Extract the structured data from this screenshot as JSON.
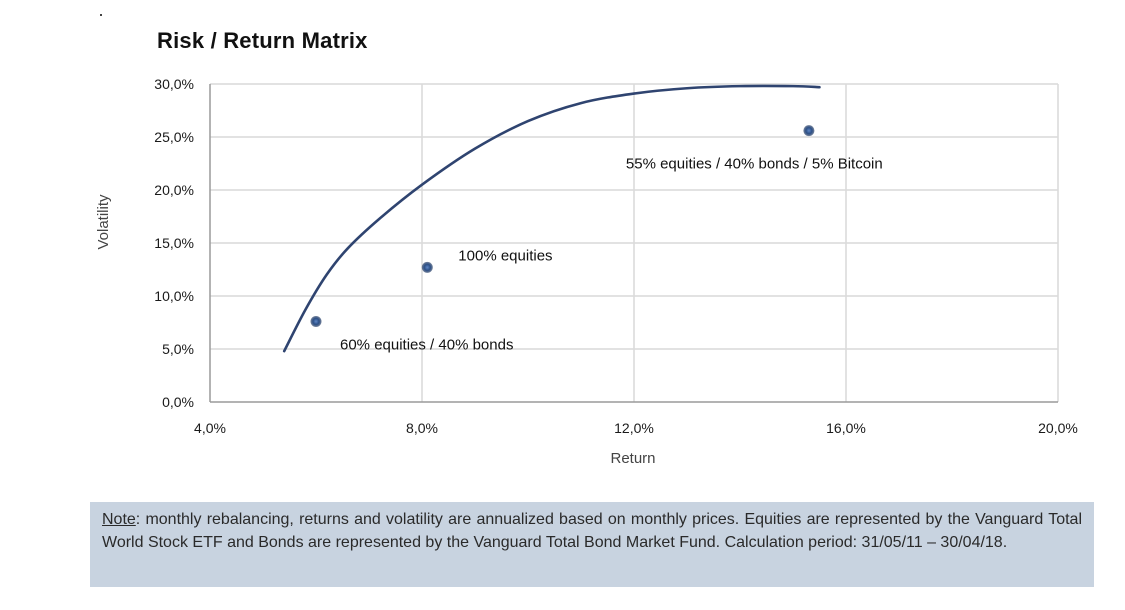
{
  "title": "Risk / Return Matrix",
  "chart_data": {
    "type": "scatter",
    "title": "Risk / Return Matrix",
    "xlabel": "Return",
    "ylabel": "Volatility",
    "xlim": [
      4.0,
      20.0
    ],
    "ylim": [
      0.0,
      30.0
    ],
    "x_ticks": [
      "4,0%",
      "8,0%",
      "12,0%",
      "16,0%",
      "20,0%"
    ],
    "y_ticks": [
      "0,0%",
      "5,0%",
      "10,0%",
      "15,0%",
      "20,0%",
      "25,0%",
      "30,0%"
    ],
    "grid": true,
    "points": [
      {
        "label": "60% equities / 40% bonds",
        "x": 6.0,
        "y": 7.6
      },
      {
        "label": "100% equities",
        "x": 8.1,
        "y": 12.7
      },
      {
        "label": "55% equities / 40% bonds / 5% Bitcoin",
        "x": 15.3,
        "y": 25.6
      }
    ],
    "frontier": {
      "x": [
        5.4,
        5.8,
        6.2,
        6.6,
        7.2,
        8.0,
        9.0,
        10.0,
        11.0,
        12.0,
        13.0,
        14.0,
        15.0,
        15.5
      ],
      "y": [
        4.8,
        8.7,
        12.0,
        14.5,
        17.3,
        20.5,
        23.9,
        26.5,
        28.2,
        29.1,
        29.6,
        29.8,
        29.8,
        29.7
      ]
    },
    "colors": {
      "curve": "#2f4470",
      "point": "#2c4f86",
      "grid": "#d9d9d9",
      "axis": "#9a9a9a"
    }
  },
  "note": {
    "label": "Note",
    "text": ": monthly rebalancing, returns and volatility are annualized based on monthly prices. Equities are represented by the Vanguard Total World Stock ETF and Bonds are represented by the Vanguard Total Bond Market Fund. Calculation period: 31/05/11 – 30/04/18."
  }
}
